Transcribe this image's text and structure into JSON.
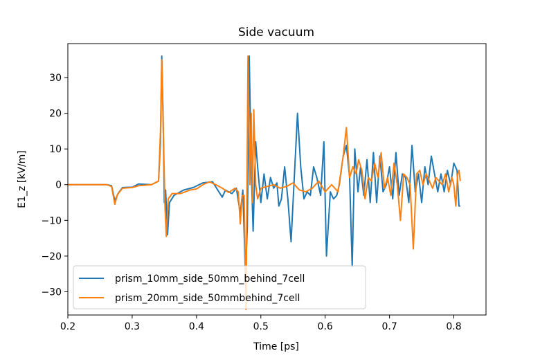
{
  "chart_data": {
    "type": "line",
    "title": "Side vacuum",
    "xlabel": "Time [ps]",
    "ylabel": "E1_z [kV/m]",
    "xlim": [
      0.2,
      0.85
    ],
    "ylim": [
      -36.5,
      39.5
    ],
    "xticks": [
      0.2,
      0.3,
      0.4,
      0.5,
      0.6,
      0.7,
      0.8
    ],
    "xtick_labels": [
      "0.2",
      "0.3",
      "0.4",
      "0.5",
      "0.6",
      "0.7",
      "0.8"
    ],
    "yticks": [
      -30,
      -20,
      -10,
      0,
      10,
      20,
      30
    ],
    "ytick_labels": [
      "−30",
      "−20",
      "−10",
      "0",
      "10",
      "20",
      "30"
    ],
    "grid": false,
    "legend_position": "lower-left",
    "series": [
      {
        "name": "prism_10mm_side_50mm_behind_7cell",
        "color": "#1f77b4",
        "points": [
          [
            0.2,
            0
          ],
          [
            0.26,
            0
          ],
          [
            0.268,
            -0.3
          ],
          [
            0.273,
            -4.5
          ],
          [
            0.278,
            -2.5
          ],
          [
            0.285,
            -0.8
          ],
          [
            0.3,
            -0.7
          ],
          [
            0.31,
            0.2
          ],
          [
            0.33,
            0
          ],
          [
            0.341,
            1
          ],
          [
            0.344,
            12
          ],
          [
            0.346,
            36
          ],
          [
            0.348,
            20
          ],
          [
            0.35,
            -5
          ],
          [
            0.352,
            -1.5
          ],
          [
            0.355,
            -14
          ],
          [
            0.358,
            -5
          ],
          [
            0.365,
            -3
          ],
          [
            0.38,
            -1.5
          ],
          [
            0.395,
            -0.8
          ],
          [
            0.41,
            0.5
          ],
          [
            0.425,
            0.8
          ],
          [
            0.44,
            -3.5
          ],
          [
            0.445,
            -1.5
          ],
          [
            0.455,
            -2.5
          ],
          [
            0.462,
            -1
          ],
          [
            0.468,
            -8
          ],
          [
            0.472,
            -1.5
          ],
          [
            0.476,
            -25
          ],
          [
            0.479,
            -12
          ],
          [
            0.482,
            36
          ],
          [
            0.485,
            5
          ],
          [
            0.488,
            -13
          ],
          [
            0.492,
            12
          ],
          [
            0.495,
            5
          ],
          [
            0.5,
            -5
          ],
          [
            0.505,
            3
          ],
          [
            0.51,
            -4
          ],
          [
            0.515,
            2
          ],
          [
            0.52,
            -1
          ],
          [
            0.525,
            0.5
          ],
          [
            0.528,
            -6
          ],
          [
            0.532,
            -4
          ],
          [
            0.537,
            5
          ],
          [
            0.542,
            -4
          ],
          [
            0.547,
            -16
          ],
          [
            0.552,
            2
          ],
          [
            0.557,
            20
          ],
          [
            0.562,
            5
          ],
          [
            0.567,
            -4
          ],
          [
            0.572,
            -2
          ],
          [
            0.577,
            -3
          ],
          [
            0.582,
            5
          ],
          [
            0.587,
            2
          ],
          [
            0.593,
            -3
          ],
          [
            0.598,
            12
          ],
          [
            0.602,
            -20
          ],
          [
            0.608,
            -2
          ],
          [
            0.613,
            -4
          ],
          [
            0.618,
            -3
          ],
          [
            0.622,
            0
          ],
          [
            0.628,
            8
          ],
          [
            0.633,
            11
          ],
          [
            0.638,
            2
          ],
          [
            0.642,
            -23
          ],
          [
            0.646,
            10
          ],
          [
            0.651,
            -2
          ],
          [
            0.655,
            5
          ],
          [
            0.66,
            -3
          ],
          [
            0.665,
            7
          ],
          [
            0.67,
            -5
          ],
          [
            0.675,
            9
          ],
          [
            0.68,
            -5
          ],
          [
            0.685,
            8
          ],
          [
            0.69,
            -2
          ],
          [
            0.695,
            0
          ],
          [
            0.7,
            5
          ],
          [
            0.705,
            -4
          ],
          [
            0.71,
            9
          ],
          [
            0.715,
            -3
          ],
          [
            0.72,
            3
          ],
          [
            0.725,
            2
          ],
          [
            0.73,
            -5
          ],
          [
            0.735,
            11
          ],
          [
            0.74,
            -2
          ],
          [
            0.745,
            3
          ],
          [
            0.75,
            -5
          ],
          [
            0.755,
            5
          ],
          [
            0.76,
            0
          ],
          [
            0.765,
            8
          ],
          [
            0.77,
            3
          ],
          [
            0.775,
            -2
          ],
          [
            0.78,
            3
          ],
          [
            0.785,
            -2
          ],
          [
            0.79,
            4
          ],
          [
            0.795,
            0
          ],
          [
            0.8,
            6
          ],
          [
            0.805,
            4
          ],
          [
            0.808,
            -6
          ],
          [
            0.81,
            -6
          ]
        ]
      },
      {
        "name": "prism_20mm_side_50mmbehind_7cell",
        "color": "#ff7f0e",
        "points": [
          [
            0.2,
            0
          ],
          [
            0.26,
            0
          ],
          [
            0.268,
            -0.5
          ],
          [
            0.273,
            -5.5
          ],
          [
            0.277,
            -2.8
          ],
          [
            0.285,
            -1
          ],
          [
            0.3,
            -0.8
          ],
          [
            0.31,
            -0.3
          ],
          [
            0.33,
            0
          ],
          [
            0.341,
            1
          ],
          [
            0.344,
            15
          ],
          [
            0.346,
            35
          ],
          [
            0.349,
            10
          ],
          [
            0.351,
            -6
          ],
          [
            0.353,
            -14.5
          ],
          [
            0.356,
            -4
          ],
          [
            0.362,
            -2.5
          ],
          [
            0.375,
            -2.5
          ],
          [
            0.39,
            -1.5
          ],
          [
            0.4,
            -1.2
          ],
          [
            0.41,
            0
          ],
          [
            0.42,
            0.8
          ],
          [
            0.43,
            0
          ],
          [
            0.44,
            -1
          ],
          [
            0.45,
            -2.2
          ],
          [
            0.46,
            -1
          ],
          [
            0.465,
            -2
          ],
          [
            0.468,
            -11
          ],
          [
            0.471,
            -3
          ],
          [
            0.474,
            -3
          ],
          [
            0.477,
            -35
          ],
          [
            0.48,
            36
          ],
          [
            0.483,
            0
          ],
          [
            0.485,
            20
          ],
          [
            0.487,
            -5
          ],
          [
            0.489,
            21
          ],
          [
            0.492,
            0
          ],
          [
            0.495,
            -4
          ],
          [
            0.5,
            -1
          ],
          [
            0.51,
            -0.5
          ],
          [
            0.52,
            0
          ],
          [
            0.53,
            -1
          ],
          [
            0.54,
            -0.5
          ],
          [
            0.55,
            0.5
          ],
          [
            0.56,
            -1.5
          ],
          [
            0.57,
            -2
          ],
          [
            0.58,
            -1
          ],
          [
            0.59,
            1
          ],
          [
            0.6,
            -2
          ],
          [
            0.61,
            0
          ],
          [
            0.62,
            -2
          ],
          [
            0.628,
            8
          ],
          [
            0.633,
            16
          ],
          [
            0.638,
            2
          ],
          [
            0.643,
            5
          ],
          [
            0.648,
            3
          ],
          [
            0.652,
            7
          ],
          [
            0.657,
            4
          ],
          [
            0.662,
            -4
          ],
          [
            0.667,
            2
          ],
          [
            0.672,
            1
          ],
          [
            0.677,
            6
          ],
          [
            0.682,
            2
          ],
          [
            0.687,
            9
          ],
          [
            0.692,
            -1
          ],
          [
            0.697,
            2
          ],
          [
            0.702,
            -3
          ],
          [
            0.707,
            6
          ],
          [
            0.712,
            0
          ],
          [
            0.717,
            -10
          ],
          [
            0.722,
            3
          ],
          [
            0.727,
            2
          ],
          [
            0.732,
            0
          ],
          [
            0.737,
            -18
          ],
          [
            0.742,
            3
          ],
          [
            0.747,
            4
          ],
          [
            0.752,
            0
          ],
          [
            0.757,
            3
          ],
          [
            0.762,
            1
          ],
          [
            0.767,
            -1
          ],
          [
            0.772,
            2
          ],
          [
            0.777,
            1
          ],
          [
            0.782,
            0
          ],
          [
            0.787,
            3
          ],
          [
            0.792,
            -2
          ],
          [
            0.797,
            2
          ],
          [
            0.8,
            0
          ],
          [
            0.803,
            -6
          ],
          [
            0.806,
            3
          ],
          [
            0.808,
            4
          ],
          [
            0.81,
            1
          ]
        ]
      }
    ]
  }
}
